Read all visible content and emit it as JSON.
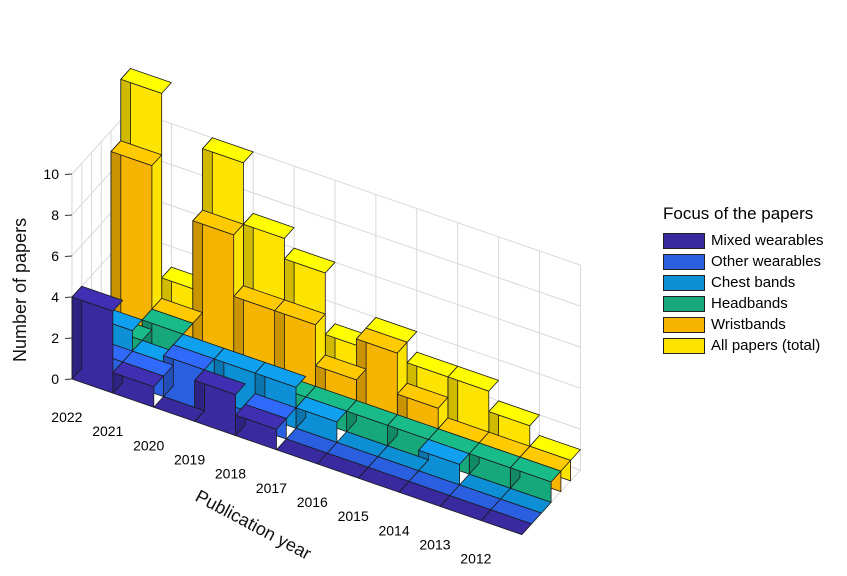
{
  "chart_data": {
    "type": "bar",
    "subtype": "3d-stacked-ribbons",
    "ylabel": "Number of papers",
    "xlabel": "Publication year",
    "zlim": [
      0,
      10
    ],
    "z_ticks": [
      "0",
      "2",
      "4",
      "6",
      "8",
      "10"
    ],
    "categories": [
      "2022",
      "2021",
      "2020",
      "2019",
      "2018",
      "2017",
      "2016",
      "2015",
      "2014",
      "2013",
      "2012"
    ],
    "grid": true,
    "legend": {
      "title": "Focus of the papers",
      "placement": "right"
    },
    "series": [
      {
        "name": "Mixed wearables",
        "color": "#3a2aa0",
        "values": [
          4,
          1,
          0,
          2,
          1,
          0,
          0,
          0,
          0,
          0,
          0
        ]
      },
      {
        "name": "Other wearables",
        "color": "#2a5fe0",
        "values": [
          1,
          1,
          2,
          0,
          1,
          0,
          0,
          0,
          0,
          0,
          0
        ]
      },
      {
        "name": "Chest bands",
        "color": "#0d8fd6",
        "values": [
          2,
          1,
          2,
          2,
          2,
          1,
          0,
          0,
          1,
          0,
          0
        ]
      },
      {
        "name": "Headbands",
        "color": "#16a87a",
        "values": [
          1,
          2,
          1,
          1,
          1,
          1,
          1,
          1,
          1,
          1,
          1
        ]
      },
      {
        "name": "Wristbands",
        "color": "#f5b400",
        "values": [
          9,
          2,
          7,
          4,
          4,
          2,
          4,
          2,
          1,
          1,
          1
        ]
      },
      {
        "name": "All papers (total)",
        "color": "#fde300",
        "values": [
          12,
          3,
          10,
          7,
          6,
          3,
          4,
          3,
          3,
          2,
          1
        ]
      }
    ]
  }
}
